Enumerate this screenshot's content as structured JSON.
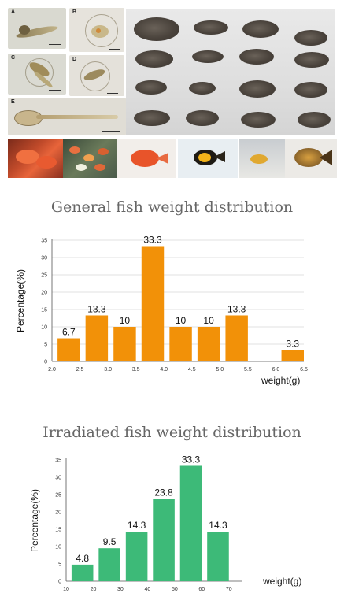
{
  "colors": {
    "bar1": "#f29108",
    "bar2": "#3dba78",
    "title": "#666666"
  },
  "photos": {
    "labels": [
      "A",
      "B",
      "C",
      "D",
      "E"
    ]
  },
  "chart_data": [
    {
      "type": "bar",
      "title": "General fish weight distribution",
      "xlabel": "weight(g)",
      "ylabel": "Percentage(%)",
      "xlim": [
        2.0,
        6.5
      ],
      "ylim": [
        0,
        35
      ],
      "xticks": [
        "2.0",
        "2.5",
        "3.0",
        "3.5",
        "4.0",
        "4.5",
        "5.0",
        "5.5",
        "6.0",
        "6.5"
      ],
      "yticks": [
        "0",
        "5",
        "10",
        "15",
        "20",
        "25",
        "30",
        "35"
      ],
      "bars": [
        {
          "from": 2.1,
          "to": 2.5,
          "value": 6.7,
          "label": "6.7"
        },
        {
          "from": 2.6,
          "to": 3.0,
          "value": 13.3,
          "label": "13.3"
        },
        {
          "from": 3.1,
          "to": 3.5,
          "value": 10,
          "label": "10"
        },
        {
          "from": 3.6,
          "to": 4.0,
          "value": 33.3,
          "label": "33.3"
        },
        {
          "from": 4.1,
          "to": 4.5,
          "value": 10,
          "label": "10"
        },
        {
          "from": 4.6,
          "to": 5.0,
          "value": 10,
          "label": "10"
        },
        {
          "from": 5.1,
          "to": 5.5,
          "value": 13.3,
          "label": "13.3"
        },
        {
          "from": 6.1,
          "to": 6.5,
          "value": 3.3,
          "label": "3.3"
        }
      ],
      "grid": true
    },
    {
      "type": "bar",
      "title": "Irradiated fish  weight distribution",
      "xlabel": "weight(g)",
      "ylabel": "Percentage(%)",
      "xlim": [
        10,
        75
      ],
      "ylim": [
        0,
        35
      ],
      "xticks": [
        "10",
        "20",
        "30",
        "40",
        "50",
        "60",
        "70"
      ],
      "yticks": [
        "0",
        "5",
        "10",
        "15",
        "20",
        "25",
        "30",
        "35"
      ],
      "bars": [
        {
          "from": 12,
          "to": 20,
          "value": 4.8,
          "label": "4.8"
        },
        {
          "from": 22,
          "to": 30,
          "value": 9.5,
          "label": "9.5"
        },
        {
          "from": 32,
          "to": 40,
          "value": 14.3,
          "label": "14.3"
        },
        {
          "from": 42,
          "to": 50,
          "value": 23.8,
          "label": "23.8"
        },
        {
          "from": 52,
          "to": 60,
          "value": 33.3,
          "label": "33.3"
        },
        {
          "from": 62,
          "to": 70,
          "value": 14.3,
          "label": "14.3"
        }
      ],
      "grid": false
    }
  ]
}
